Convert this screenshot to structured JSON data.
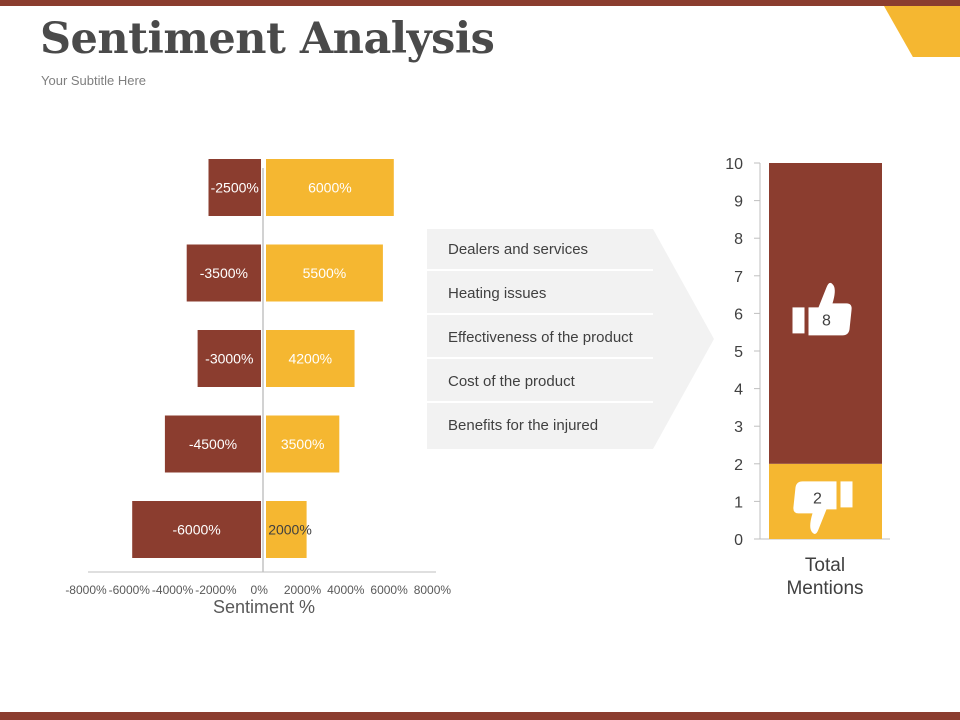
{
  "slide": {
    "title": "Sentiment Analysis",
    "subtitle": "Your Subtitle Here"
  },
  "topics": [
    "Dealers and services",
    "Heating issues",
    "Effectiveness of the product",
    "Cost of the product",
    "Benefits for the injured"
  ],
  "colors": {
    "negative": "#8b3d2f",
    "positive": "#f5b731",
    "panel": "#f2f2f2",
    "text": "#404040"
  },
  "icons": {
    "positive": "thumbs-up-icon",
    "negative": "thumbs-down-icon"
  },
  "chart_data": [
    {
      "type": "bar",
      "orientation": "horizontal",
      "stacked": true,
      "xlabel": "Sentiment %",
      "xlim": [
        -8000,
        8000
      ],
      "xticks": [
        -8000,
        -6000,
        -4000,
        -2000,
        0,
        2000,
        4000,
        6000,
        8000
      ],
      "xtick_labels": [
        "-8000%",
        "-6000%",
        "-4000%",
        "-2000%",
        "0%",
        "2000%",
        "4000%",
        "6000%",
        "8000%"
      ],
      "series": [
        {
          "values": [
            -2500,
            -3500,
            -3000,
            -4500,
            -6000
          ],
          "labels": [
            "-2500%",
            "-3500%",
            "-3000%",
            "-4500%",
            "-6000%"
          ],
          "color": "#8b3d2f"
        },
        {
          "values": [
            6000,
            5500,
            4200,
            3500,
            2000
          ],
          "labels": [
            "6000%",
            "5500%",
            "4200%",
            "3500%",
            "2000%"
          ],
          "color": "#f5b731"
        }
      ],
      "grid": false,
      "legend": "none"
    },
    {
      "type": "bar",
      "stacked": true,
      "categories": [
        "Total Mentions"
      ],
      "ylim": [
        0,
        10
      ],
      "yticks": [
        0,
        1,
        2,
        3,
        4,
        5,
        6,
        7,
        8,
        9,
        10
      ],
      "series": [
        {
          "values": [
            2
          ],
          "label": "2",
          "color": "#f5b731",
          "icon": "thumbs-down-icon"
        },
        {
          "values": [
            8
          ],
          "label": "8",
          "color": "#8b3d2f",
          "icon": "thumbs-up-icon"
        }
      ],
      "grid": false,
      "legend": "none"
    }
  ]
}
